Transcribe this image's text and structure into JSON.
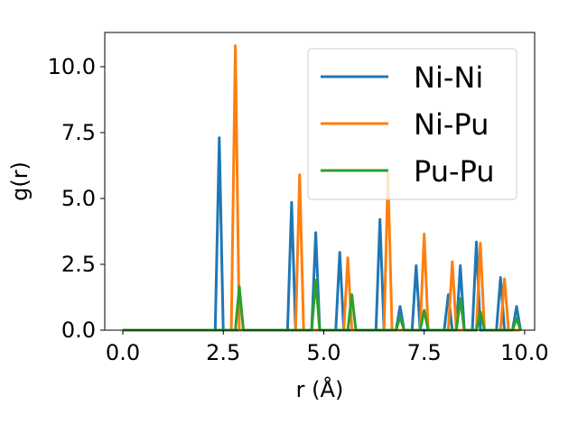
{
  "chart_data": {
    "type": "line",
    "title": "",
    "xlabel": "r (Å)",
    "ylabel": "g(r)",
    "xlim": [
      -0.45,
      10.25
    ],
    "ylim": [
      0,
      11.3
    ],
    "x_ticks": [
      0.0,
      2.5,
      5.0,
      7.5,
      10.0
    ],
    "x_tick_labels": [
      "0.0",
      "2.5",
      "5.0",
      "7.5",
      "10.0"
    ],
    "y_ticks": [
      0.0,
      2.5,
      5.0,
      7.5,
      10.0
    ],
    "y_tick_labels": [
      "0.0",
      "2.5",
      "5.0",
      "7.5",
      "10.0"
    ],
    "grid": false,
    "legend_position": "top-right",
    "series": [
      {
        "name": "Ni-Ni",
        "color": "#1f77b4",
        "x": [
          0.0,
          2.3,
          2.4,
          2.5,
          4.1,
          4.2,
          4.3,
          4.7,
          4.8,
          4.9,
          5.3,
          5.4,
          5.5,
          6.3,
          6.4,
          6.5,
          6.8,
          6.9,
          7.0,
          7.2,
          7.3,
          7.4,
          8.0,
          8.1,
          8.2,
          8.3,
          8.4,
          8.5,
          8.7,
          8.8,
          8.9,
          9.3,
          9.4,
          9.5,
          9.7,
          9.8,
          9.9
        ],
        "y": [
          0,
          0,
          7.3,
          0,
          0,
          4.85,
          0,
          0,
          3.7,
          0,
          0,
          2.95,
          0,
          0,
          4.2,
          0,
          0,
          0.9,
          0,
          0,
          2.45,
          0,
          0,
          1.35,
          0,
          0,
          2.45,
          0,
          0,
          3.35,
          0,
          0,
          2.0,
          0,
          0,
          0.9,
          0
        ]
      },
      {
        "name": "Ni-Pu",
        "color": "#ff7f0e",
        "x": [
          0.0,
          2.7,
          2.8,
          2.9,
          4.3,
          4.4,
          4.5,
          5.5,
          5.6,
          5.7,
          6.5,
          6.6,
          6.7,
          7.4,
          7.5,
          7.6,
          8.1,
          8.2,
          8.3,
          8.8,
          8.9,
          9.0,
          9.4,
          9.5,
          9.6,
          9.9
        ],
        "y": [
          0,
          0,
          10.8,
          0,
          0,
          5.9,
          0,
          0,
          2.75,
          0,
          0,
          5.95,
          0,
          0,
          3.65,
          0,
          0,
          2.6,
          0,
          0,
          3.3,
          0,
          0,
          1.95,
          0,
          0
        ]
      },
      {
        "name": "Pu-Pu",
        "color": "#2ca02c",
        "x": [
          0.0,
          2.8,
          2.9,
          3.0,
          4.7,
          4.8,
          4.9,
          5.6,
          5.7,
          5.8,
          6.8,
          6.9,
          7.0,
          7.4,
          7.5,
          7.6,
          8.3,
          8.4,
          8.5,
          8.8,
          8.9,
          9.0,
          9.7,
          9.8,
          9.9
        ],
        "y": [
          0,
          0,
          1.65,
          0,
          0,
          1.9,
          0,
          0,
          1.35,
          0,
          0,
          0.5,
          0,
          0,
          0.75,
          0,
          0,
          1.2,
          0,
          0,
          0.7,
          0,
          0,
          0.45,
          0
        ]
      }
    ]
  }
}
